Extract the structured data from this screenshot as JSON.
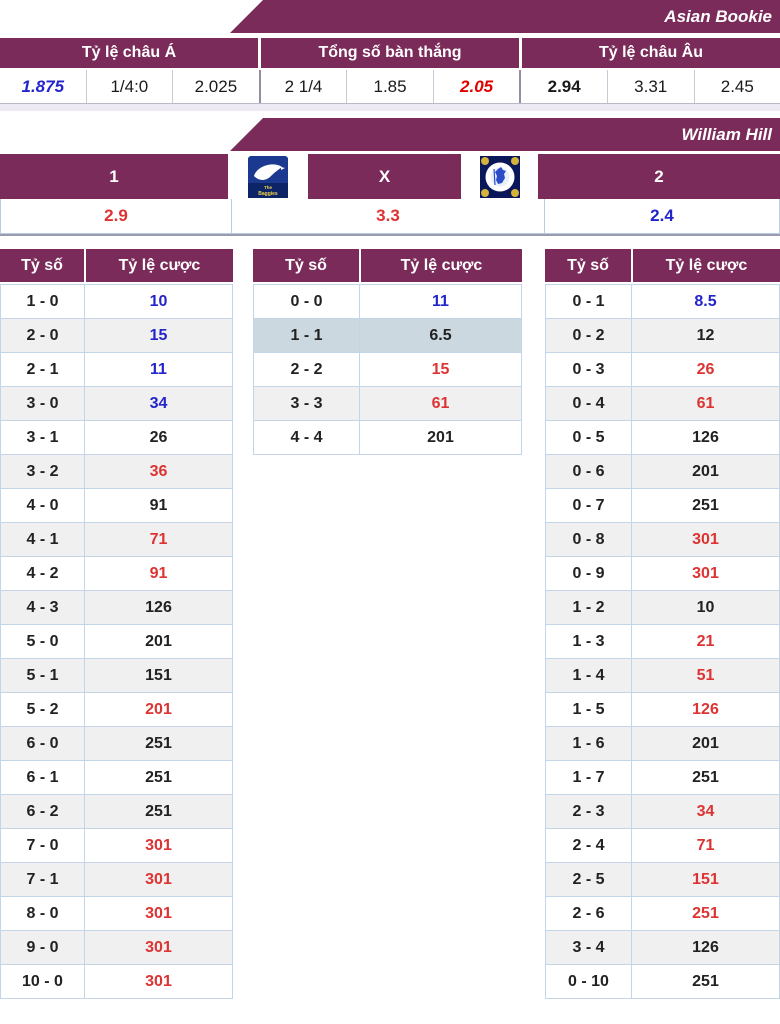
{
  "banners": {
    "asian_bookie": "Asian Bookie",
    "william_hill": "William Hill"
  },
  "colors": {
    "accent_purple": "#7b2b5a",
    "odds_up_red": "#dd3333",
    "odds_down_blue": "#2424cc",
    "highlight_row": "#ccd8e0",
    "stripe_row": "#f0f0f0",
    "table_border": "#c3d5e6"
  },
  "asian_odds_table": {
    "headers": [
      "Tỷ lệ châu Á",
      "Tổng số bàn thắng",
      "Tỷ lệ châu Âu"
    ],
    "values": [
      {
        "text": "1.875",
        "style": "blue-italic"
      },
      {
        "text": "1/4:0",
        "style": "plain"
      },
      {
        "text": "2.025",
        "style": "plain"
      },
      {
        "text": "2 1/4",
        "style": "plain"
      },
      {
        "text": "1.85",
        "style": "plain"
      },
      {
        "text": "2.05",
        "style": "red-italic"
      },
      {
        "text": "2.94",
        "style": "bold"
      },
      {
        "text": "3.31",
        "style": "plain"
      },
      {
        "text": "2.45",
        "style": "plain"
      }
    ]
  },
  "match_odds": {
    "labels": {
      "home": "1",
      "draw": "X",
      "away": "2"
    },
    "home_logo": "west-brom-crest",
    "away_logo": "chelsea-crest",
    "odds": [
      {
        "text": "2.9",
        "color": "red"
      },
      {
        "text": "3.3",
        "color": "red"
      },
      {
        "text": "2.4",
        "color": "blue"
      }
    ]
  },
  "score_tables": {
    "col_headers": [
      "Tỷ số",
      "Tỷ lệ cược"
    ],
    "home": {
      "rows": [
        {
          "score": "1 - 0",
          "odds": "10",
          "color": "blue"
        },
        {
          "score": "2 - 0",
          "odds": "15",
          "color": "blue"
        },
        {
          "score": "2 - 1",
          "odds": "11",
          "color": "blue"
        },
        {
          "score": "3 - 0",
          "odds": "34",
          "color": "blue"
        },
        {
          "score": "3 - 1",
          "odds": "26",
          "color": "black"
        },
        {
          "score": "3 - 2",
          "odds": "36",
          "color": "red"
        },
        {
          "score": "4 - 0",
          "odds": "91",
          "color": "black"
        },
        {
          "score": "4 - 1",
          "odds": "71",
          "color": "red"
        },
        {
          "score": "4 - 2",
          "odds": "91",
          "color": "red"
        },
        {
          "score": "4 - 3",
          "odds": "126",
          "color": "black"
        },
        {
          "score": "5 - 0",
          "odds": "201",
          "color": "black"
        },
        {
          "score": "5 - 1",
          "odds": "151",
          "color": "black"
        },
        {
          "score": "5 - 2",
          "odds": "201",
          "color": "red"
        },
        {
          "score": "6 - 0",
          "odds": "251",
          "color": "black"
        },
        {
          "score": "6 - 1",
          "odds": "251",
          "color": "black"
        },
        {
          "score": "6 - 2",
          "odds": "251",
          "color": "black"
        },
        {
          "score": "7 - 0",
          "odds": "301",
          "color": "red"
        },
        {
          "score": "7 - 1",
          "odds": "301",
          "color": "red"
        },
        {
          "score": "8 - 0",
          "odds": "301",
          "color": "red"
        },
        {
          "score": "9 - 0",
          "odds": "301",
          "color": "red"
        },
        {
          "score": "10 - 0",
          "odds": "301",
          "color": "red"
        }
      ]
    },
    "draw": {
      "rows": [
        {
          "score": "0 - 0",
          "odds": "11",
          "color": "blue"
        },
        {
          "score": "1 - 1",
          "odds": "6.5",
          "color": "black",
          "hl": true
        },
        {
          "score": "2 - 2",
          "odds": "15",
          "color": "red"
        },
        {
          "score": "3 - 3",
          "odds": "61",
          "color": "red"
        },
        {
          "score": "4 - 4",
          "odds": "201",
          "color": "black"
        }
      ]
    },
    "away": {
      "rows": [
        {
          "score": "0 - 1",
          "odds": "8.5",
          "color": "blue"
        },
        {
          "score": "0 - 2",
          "odds": "12",
          "color": "black"
        },
        {
          "score": "0 - 3",
          "odds": "26",
          "color": "red"
        },
        {
          "score": "0 - 4",
          "odds": "61",
          "color": "red"
        },
        {
          "score": "0 - 5",
          "odds": "126",
          "color": "black"
        },
        {
          "score": "0 - 6",
          "odds": "201",
          "color": "black"
        },
        {
          "score": "0 - 7",
          "odds": "251",
          "color": "black"
        },
        {
          "score": "0 - 8",
          "odds": "301",
          "color": "red"
        },
        {
          "score": "0 - 9",
          "odds": "301",
          "color": "red"
        },
        {
          "score": "1 - 2",
          "odds": "10",
          "color": "black"
        },
        {
          "score": "1 - 3",
          "odds": "21",
          "color": "red"
        },
        {
          "score": "1 - 4",
          "odds": "51",
          "color": "red"
        },
        {
          "score": "1 - 5",
          "odds": "126",
          "color": "red"
        },
        {
          "score": "1 - 6",
          "odds": "201",
          "color": "black"
        },
        {
          "score": "1 - 7",
          "odds": "251",
          "color": "black"
        },
        {
          "score": "2 - 3",
          "odds": "34",
          "color": "red"
        },
        {
          "score": "2 - 4",
          "odds": "71",
          "color": "red"
        },
        {
          "score": "2 - 5",
          "odds": "151",
          "color": "red"
        },
        {
          "score": "2 - 6",
          "odds": "251",
          "color": "red"
        },
        {
          "score": "3 - 4",
          "odds": "126",
          "color": "black"
        },
        {
          "score": "0 - 10",
          "odds": "251",
          "color": "black"
        }
      ]
    }
  }
}
